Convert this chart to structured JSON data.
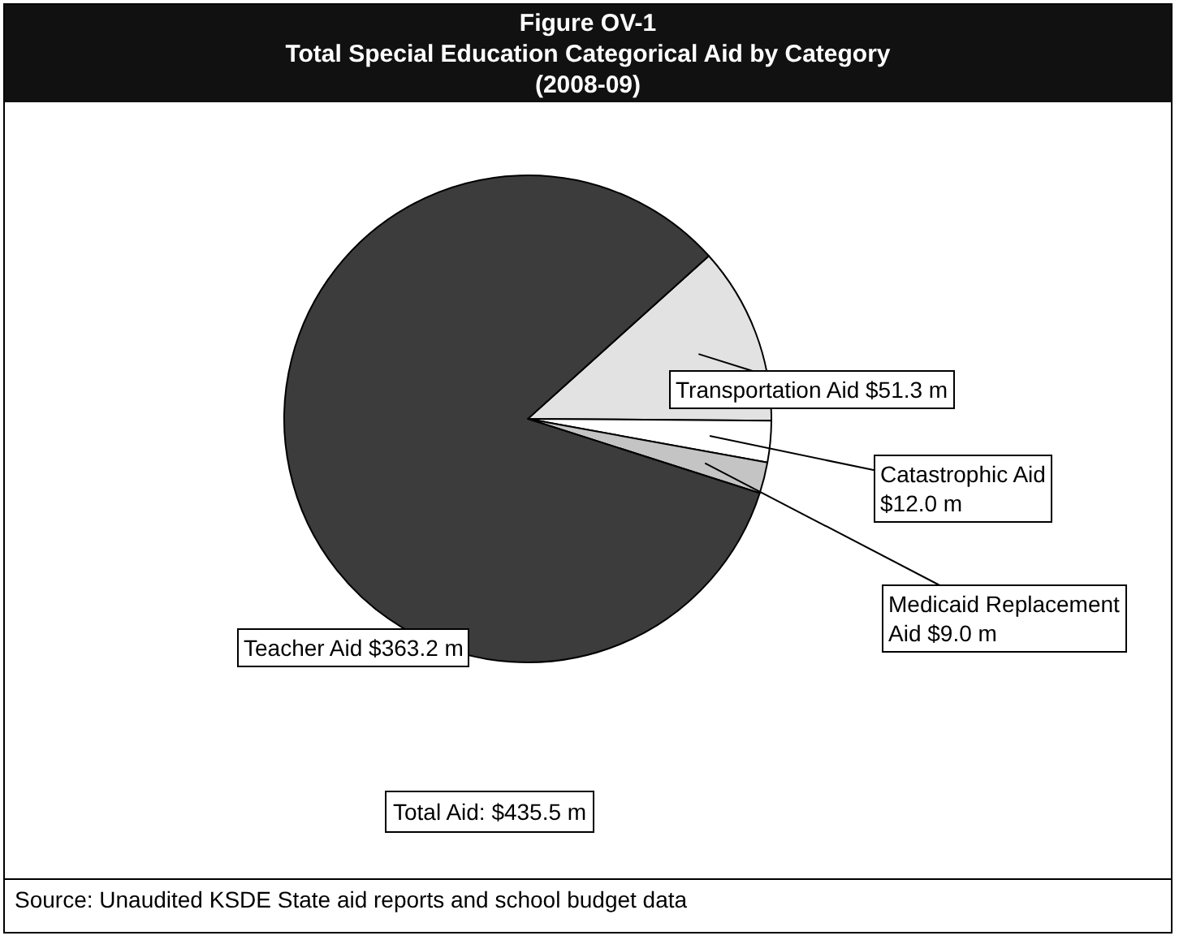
{
  "chart_data": {
    "type": "pie",
    "title": "Figure OV-1\nTotal Special Education Categorical Aid by Category\n(2008-09)",
    "categories": [
      "Transportation Aid",
      "Catastrophic Aid",
      "Medicaid Replacement Aid",
      "Teacher Aid"
    ],
    "values": [
      51.3,
      12.0,
      9.0,
      363.2
    ],
    "value_labels": [
      "$51.3 m",
      "$12.0 m",
      "$9.0 m",
      "$363.2 m"
    ],
    "colors": [
      "#e2e2e2",
      "#ffffff",
      "#c4c4c4",
      "#3c3c3c"
    ],
    "annotations": [
      "Total Aid: $435.5 m",
      "Source: Unaudited KSDE State aid reports and school budget data"
    ]
  }
}
